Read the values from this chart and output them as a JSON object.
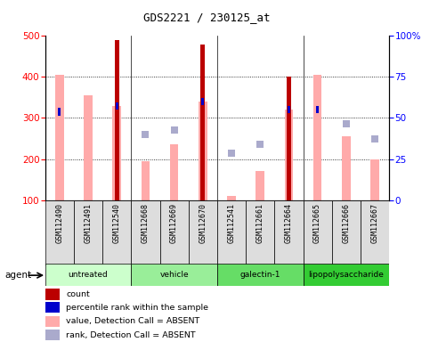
{
  "title": "GDS2221 / 230125_at",
  "samples": [
    "GSM112490",
    "GSM112491",
    "GSM112540",
    "GSM112668",
    "GSM112669",
    "GSM112670",
    "GSM112541",
    "GSM112661",
    "GSM112664",
    "GSM112665",
    "GSM112666",
    "GSM112667"
  ],
  "groups": [
    {
      "label": "untreated",
      "color": "#ccffcc",
      "indices": [
        0,
        1,
        2
      ]
    },
    {
      "label": "vehicle",
      "color": "#99ee99",
      "indices": [
        3,
        4,
        5
      ]
    },
    {
      "label": "galectin-1",
      "color": "#66dd66",
      "indices": [
        6,
        7,
        8
      ]
    },
    {
      "label": "lipopolysaccharide",
      "color": "#33cc33",
      "indices": [
        9,
        10,
        11
      ]
    }
  ],
  "count_values": [
    null,
    null,
    490,
    null,
    null,
    480,
    null,
    null,
    400,
    null,
    null,
    null
  ],
  "rank_values": [
    315,
    null,
    330,
    null,
    null,
    340,
    null,
    null,
    320,
    320,
    null,
    null
  ],
  "absent_value": [
    405,
    355,
    330,
    195,
    235,
    340,
    110,
    170,
    320,
    405,
    255,
    200
  ],
  "absent_rank": [
    null,
    null,
    null,
    260,
    270,
    null,
    215,
    235,
    null,
    null,
    285,
    248
  ],
  "ylim": [
    100,
    500
  ],
  "yticks_left": [
    100,
    200,
    300,
    400,
    500
  ],
  "yright_map": {
    "100": 0,
    "200": 25,
    "300": 50,
    "400": 75,
    "500": 100
  },
  "bar_color_dark": "#bb0000",
  "bar_color_rank": "#0000cc",
  "absent_val_color": "#ffaaaa",
  "absent_rank_color": "#aaaacc",
  "grid_color": "#000000"
}
